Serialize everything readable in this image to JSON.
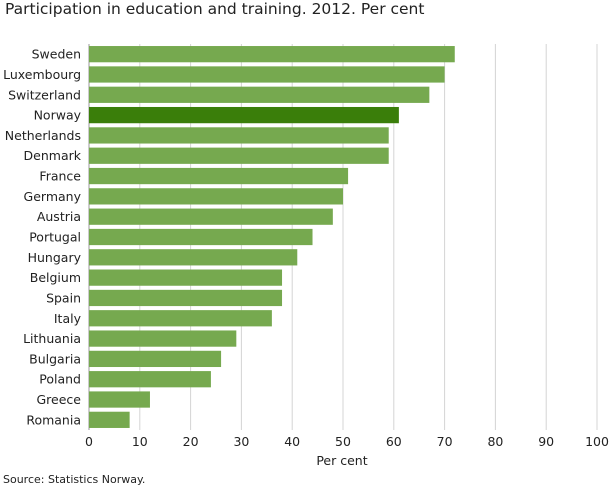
{
  "chart_data": {
    "type": "bar",
    "orientation": "horizontal",
    "title": "Participation in education and training. 2012. Per cent",
    "xlabel": "Per cent",
    "ylabel": "",
    "xlim": [
      0,
      100
    ],
    "xticks": [
      0,
      10,
      20,
      30,
      40,
      50,
      60,
      70,
      80,
      90,
      100
    ],
    "grid": true,
    "categories": [
      "Sweden",
      "Luxembourg",
      "Switzerland",
      "Norway",
      "Netherlands",
      "Denmark",
      "France",
      "Germany",
      "Austria",
      "Portugal",
      "Hungary",
      "Belgium",
      "Spain",
      "Italy",
      "Lithuania",
      "Bulgaria",
      "Poland",
      "Greece",
      "Romania"
    ],
    "values": [
      72,
      70,
      67,
      61,
      59,
      59,
      51,
      50,
      48,
      44,
      41,
      38,
      38,
      36,
      29,
      26,
      24,
      12,
      8
    ],
    "highlight": "Norway",
    "colors": {
      "bar": "#76a94f",
      "highlight": "#3a7e0a",
      "grid": "#d4d4d4",
      "axis": "#999999"
    },
    "source": "Source: Statistics Norway."
  }
}
